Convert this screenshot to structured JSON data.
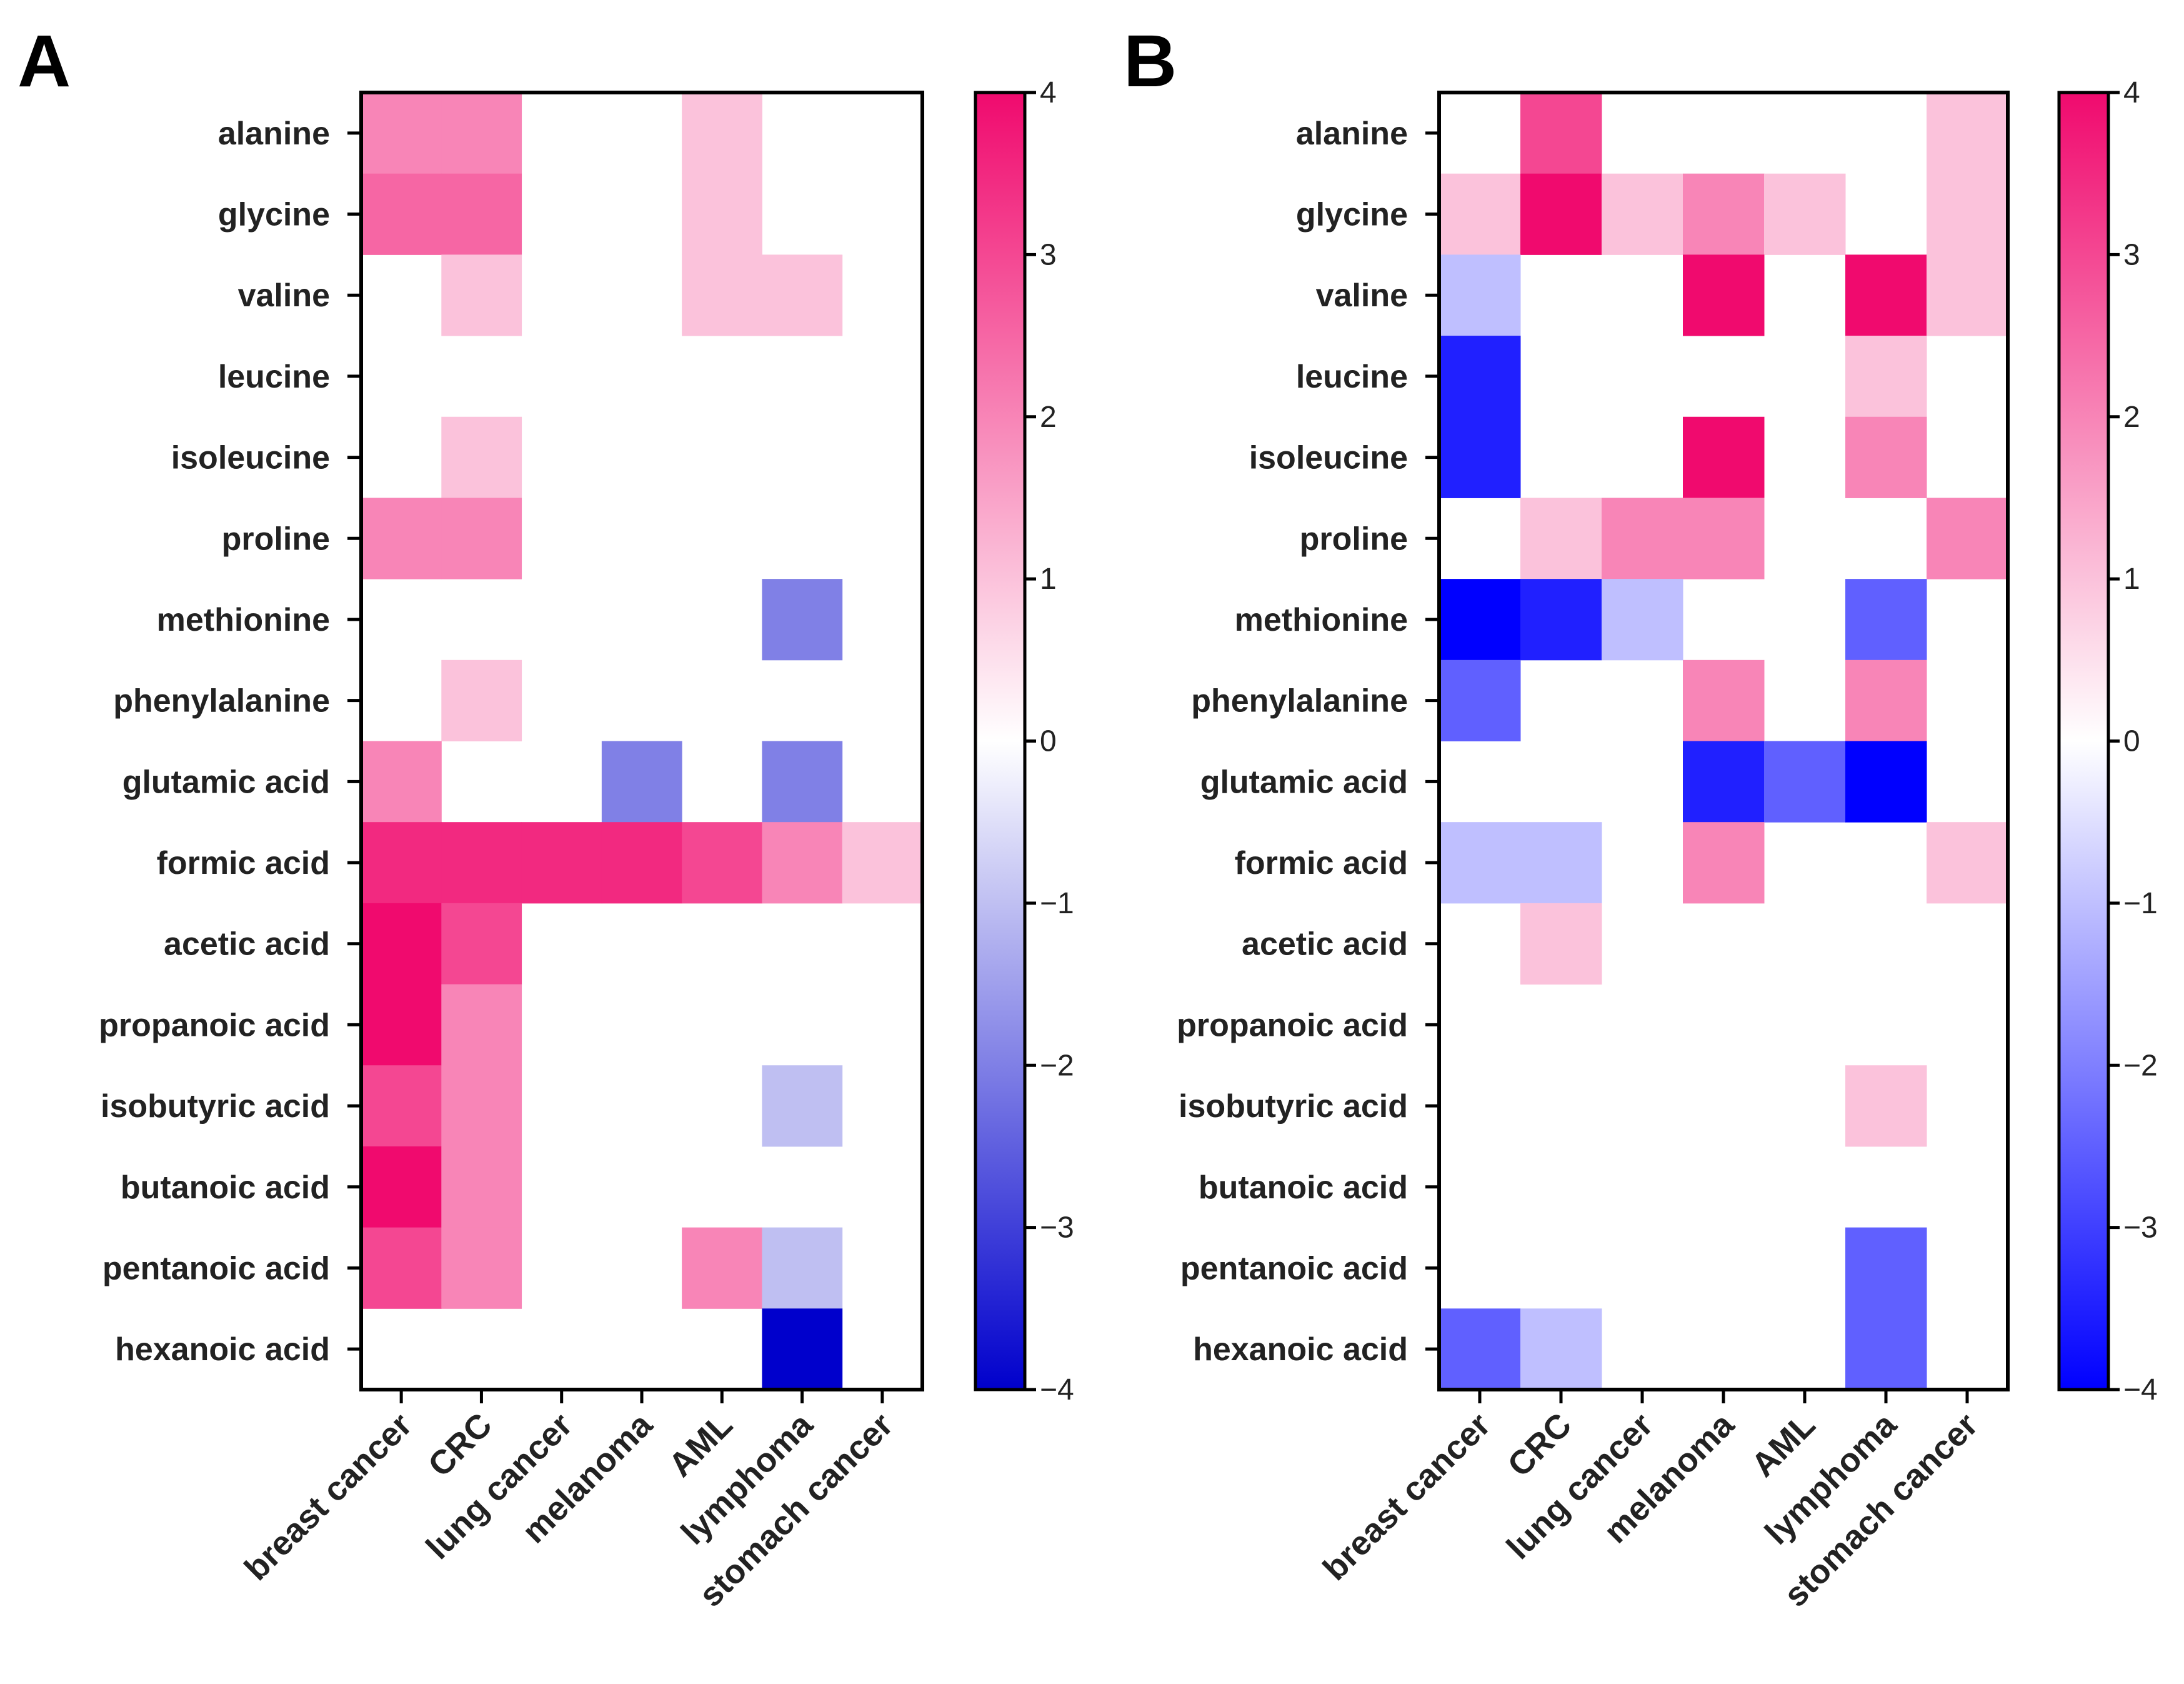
{
  "figure": {
    "panels": [
      "A",
      "B"
    ]
  },
  "chart_data": [
    {
      "panel": "A",
      "type": "heatmap",
      "rows": [
        "alanine",
        "glycine",
        "valine",
        "leucine",
        "isoleucine",
        "proline",
        "methionine",
        "phenylalanine",
        "glutamic acid",
        "formic acid",
        "acetic acid",
        "propanoic acid",
        "isobutyric acid",
        "butanoic acid",
        "pentanoic acid",
        "hexanoic acid"
      ],
      "columns": [
        "breast cancer",
        "CRC",
        "lung cancer",
        "melanoma",
        "AML",
        "lymphoma",
        "stomach cancer"
      ],
      "values": [
        [
          2,
          2,
          0,
          0,
          1,
          0,
          0
        ],
        [
          2.5,
          2.5,
          0,
          0,
          1,
          0,
          0
        ],
        [
          0,
          1,
          0,
          0,
          1,
          1,
          0
        ],
        [
          0,
          0,
          0,
          0,
          0,
          0,
          0
        ],
        [
          0,
          1,
          0,
          0,
          0,
          0,
          0
        ],
        [
          2,
          2,
          0,
          0,
          0,
          0,
          0
        ],
        [
          0,
          0,
          0,
          0,
          0,
          -2,
          0
        ],
        [
          0,
          1,
          0,
          0,
          0,
          0,
          0
        ],
        [
          2,
          0,
          0,
          -2,
          0,
          -2,
          0
        ],
        [
          3.5,
          3.5,
          3.5,
          3.5,
          3,
          2,
          1
        ],
        [
          4,
          3,
          0,
          0,
          0,
          0,
          0
        ],
        [
          4,
          2,
          0,
          0,
          0,
          0,
          0
        ],
        [
          3,
          2,
          0,
          0,
          0,
          -1,
          0
        ],
        [
          4,
          2,
          0,
          0,
          0,
          0,
          0
        ],
        [
          3,
          2,
          0,
          0,
          2,
          -1,
          0
        ],
        [
          0,
          0,
          0,
          0,
          0,
          -4,
          0
        ]
      ],
      "colorbar": {
        "min": -4,
        "max": 4,
        "ticks": [
          "4",
          "3",
          "2",
          "1",
          "0",
          "−1",
          "−2",
          "−3",
          "−4"
        ]
      },
      "colors": {
        "positive": "#f00a6e",
        "negative": "#0000cc",
        "zero": "#ffffff"
      }
    },
    {
      "panel": "B",
      "type": "heatmap",
      "rows": [
        "alanine",
        "glycine",
        "valine",
        "leucine",
        "isoleucine",
        "proline",
        "methionine",
        "phenylalanine",
        "glutamic acid",
        "formic acid",
        "acetic acid",
        "propanoic acid",
        "isobutyric acid",
        "butanoic acid",
        "pentanoic acid",
        "hexanoic acid"
      ],
      "columns": [
        "breast cancer",
        "CRC",
        "lung cancer",
        "melanoma",
        "AML",
        "lymphoma",
        "stomach cancer"
      ],
      "values": [
        [
          0,
          3,
          0,
          0,
          0,
          0,
          1
        ],
        [
          1,
          4,
          1,
          2,
          1,
          0,
          1
        ],
        [
          -1,
          0,
          0,
          4,
          0,
          4,
          1
        ],
        [
          -3.5,
          0,
          0,
          0,
          0,
          1,
          0
        ],
        [
          -3.5,
          0,
          0,
          4,
          0,
          2,
          0
        ],
        [
          0,
          1,
          2,
          2,
          0,
          0,
          2
        ],
        [
          -4,
          -3.5,
          -1,
          0,
          0,
          -2.5,
          0
        ],
        [
          -2.5,
          0,
          0,
          2,
          0,
          2,
          0
        ],
        [
          0,
          0,
          0,
          -3.5,
          -2.5,
          -4,
          0
        ],
        [
          -1,
          -1,
          0,
          2,
          0,
          0,
          1
        ],
        [
          0,
          1,
          0,
          0,
          0,
          0,
          0
        ],
        [
          0,
          0,
          0,
          0,
          0,
          0,
          0
        ],
        [
          0,
          0,
          0,
          0,
          0,
          1,
          0
        ],
        [
          0,
          0,
          0,
          0,
          0,
          0,
          0
        ],
        [
          0,
          0,
          0,
          0,
          0,
          -2.5,
          0
        ],
        [
          -2.5,
          -1,
          0,
          0,
          0,
          -2.5,
          0
        ]
      ],
      "colorbar": {
        "min": -4,
        "max": 4,
        "ticks": [
          "4",
          "3",
          "2",
          "1",
          "0",
          "−1",
          "−2",
          "−3",
          "−4"
        ]
      },
      "colors": {
        "positive": "#f00a6e",
        "negative": "#0000ff",
        "zero": "#ffffff"
      }
    }
  ]
}
